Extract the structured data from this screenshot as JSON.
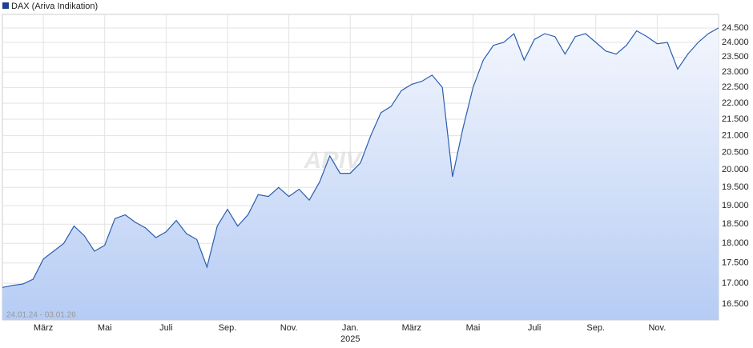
{
  "chart_data": {
    "type": "area",
    "title": "DAX (Ariva Indikation)",
    "date_range": "24.01.24 - 03.01.26",
    "watermark": "ARIVA.DE",
    "color": "#2a5db0",
    "legend_color": "#1f3f8f",
    "log_scale": true,
    "grid": true,
    "categories": [
      null,
      null,
      null,
      null,
      "März",
      null,
      null,
      null,
      null,
      null,
      "Mai",
      null,
      null,
      null,
      null,
      null,
      "Juli",
      null,
      null,
      null,
      null,
      null,
      "Sep.",
      null,
      null,
      null,
      null,
      null,
      "Nov.",
      null,
      null,
      null,
      null,
      null,
      "Jan.\n2025",
      null,
      null,
      null,
      null,
      null,
      "März",
      null,
      null,
      null,
      null,
      null,
      "Mai",
      null,
      null,
      null,
      null,
      null,
      "Juli",
      null,
      null,
      null,
      null,
      null,
      "Sep.",
      null,
      null,
      null,
      null,
      null,
      "Nov.",
      null,
      null,
      null,
      null,
      null,
      null
    ],
    "values": [
      16900,
      16950,
      16980,
      17100,
      17600,
      17800,
      18000,
      18450,
      18200,
      17800,
      17950,
      18650,
      18750,
      18550,
      18400,
      18150,
      18300,
      18600,
      18250,
      18100,
      17400,
      18450,
      18900,
      18450,
      18750,
      19300,
      19250,
      19500,
      19250,
      19450,
      19150,
      19650,
      20400,
      19900,
      19900,
      20200,
      21000,
      21700,
      21900,
      22400,
      22600,
      22700,
      22900,
      22500,
      19800,
      21200,
      22500,
      23400,
      23900,
      24000,
      24300,
      23400,
      24100,
      24300,
      24200,
      23600,
      24200,
      24300,
      24000,
      23700,
      23600,
      23900,
      24400,
      24200,
      23950,
      24000,
      23100,
      23600,
      24000,
      24300,
      24500
    ],
    "ylim": [
      16130,
      24980
    ],
    "yticks": [
      {
        "value": 16500,
        "label": "16.500"
      },
      {
        "value": 17000,
        "label": "17.000"
      },
      {
        "value": 17500,
        "label": "17.500"
      },
      {
        "value": 18000,
        "label": "18.000"
      },
      {
        "value": 18500,
        "label": "18.500"
      },
      {
        "value": 19000,
        "label": "19.000"
      },
      {
        "value": 19500,
        "label": "19.500"
      },
      {
        "value": 20000,
        "label": "20.000"
      },
      {
        "value": 20500,
        "label": "20.500"
      },
      {
        "value": 21000,
        "label": "21.000"
      },
      {
        "value": 21500,
        "label": "21.500"
      },
      {
        "value": 22000,
        "label": "22.000"
      },
      {
        "value": 22500,
        "label": "22.500"
      },
      {
        "value": 23000,
        "label": "23.000"
      },
      {
        "value": 23500,
        "label": "23.500"
      },
      {
        "value": 24000,
        "label": "24.000"
      },
      {
        "value": 24500,
        "label": "24.500"
      }
    ]
  }
}
